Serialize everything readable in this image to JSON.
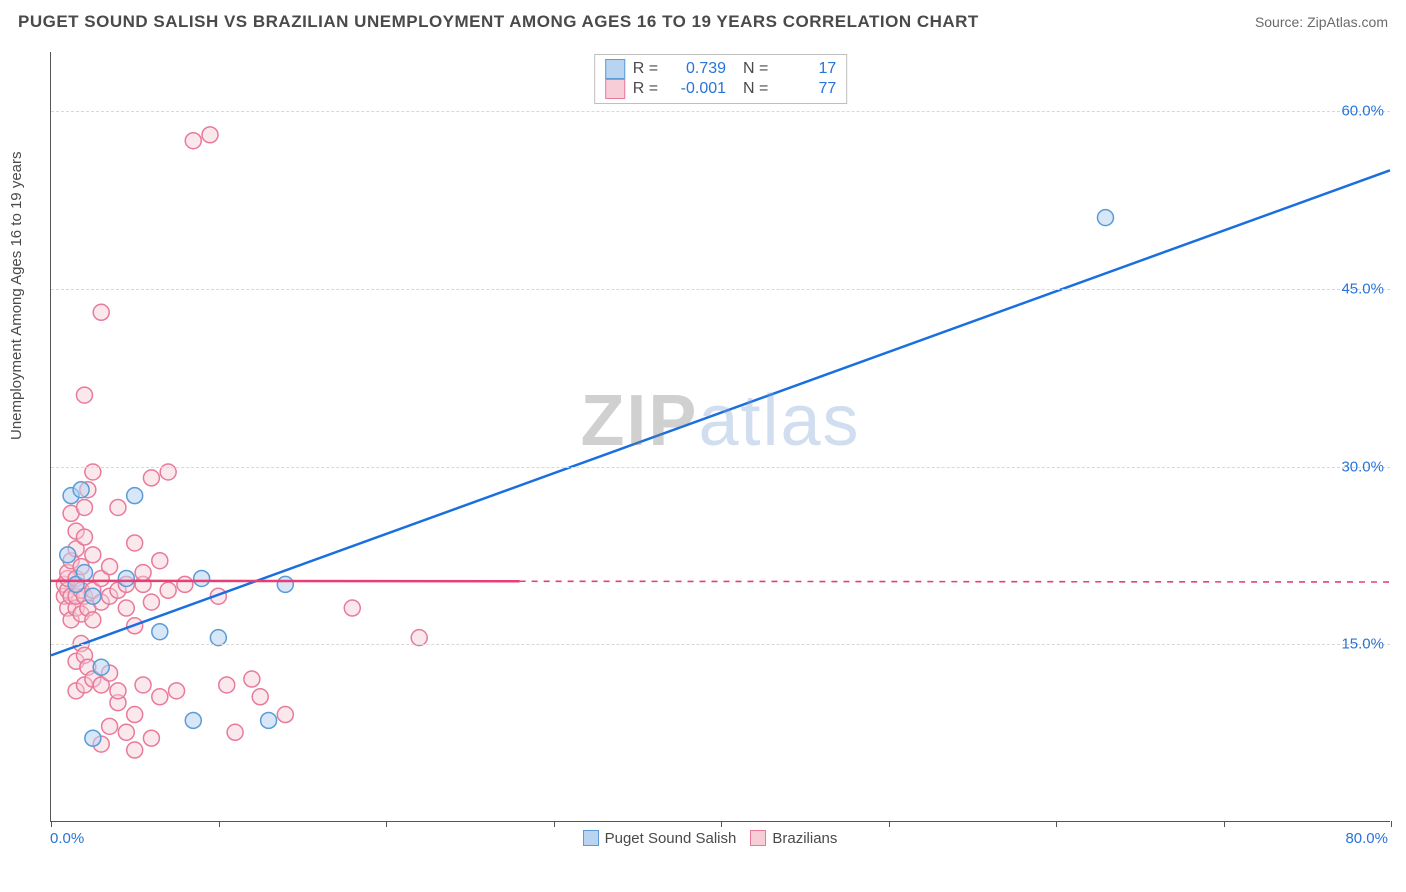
{
  "title": "PUGET SOUND SALISH VS BRAZILIAN UNEMPLOYMENT AMONG AGES 16 TO 19 YEARS CORRELATION CHART",
  "source": "Source: ZipAtlas.com",
  "watermark_zip": "ZIP",
  "watermark_atlas": "atlas",
  "y_axis_label": "Unemployment Among Ages 16 to 19 years",
  "chart": {
    "type": "scatter",
    "background_color": "#ffffff",
    "grid_color": "#d8d8d8",
    "axis_color": "#555555",
    "tick_label_color": "#2874d8",
    "title_fontsize": 17,
    "label_fontsize": 15,
    "xlim": [
      0,
      80
    ],
    "ylim": [
      0,
      65
    ],
    "x_origin_label": "0.0%",
    "x_max_label": "80.0%",
    "x_tick_positions": [
      0,
      10,
      20,
      30,
      40,
      50,
      60,
      70,
      80
    ],
    "y_ticks": [
      {
        "v": 15,
        "label": "15.0%"
      },
      {
        "v": 30,
        "label": "30.0%"
      },
      {
        "v": 45,
        "label": "45.0%"
      },
      {
        "v": 60,
        "label": "60.0%"
      }
    ],
    "marker_radius": 8,
    "marker_stroke_width": 1.5,
    "line_width": 2.5,
    "series": [
      {
        "id": "blue",
        "name": "Puget Sound Salish",
        "fill": "#b8d4f0",
        "stroke": "#5a9bd8",
        "fill_opacity": 0.55,
        "R_label": "R =",
        "R": "0.739",
        "N_label": "N =",
        "N": "17",
        "trend": {
          "x1": 0,
          "y1": 14,
          "x2": 80,
          "y2": 55,
          "solid_until_x": 80,
          "color": "#1a6fe0"
        },
        "points": [
          [
            1.0,
            22.5
          ],
          [
            1.2,
            27.5
          ],
          [
            1.5,
            20.0
          ],
          [
            1.8,
            28.0
          ],
          [
            2.0,
            21.0
          ],
          [
            2.5,
            19.0
          ],
          [
            2.5,
            7.0
          ],
          [
            3.0,
            13.0
          ],
          [
            4.5,
            20.5
          ],
          [
            5.0,
            27.5
          ],
          [
            6.5,
            16.0
          ],
          [
            8.5,
            8.5
          ],
          [
            9.0,
            20.5
          ],
          [
            10.0,
            15.5
          ],
          [
            13.0,
            8.5
          ],
          [
            14.0,
            20.0
          ],
          [
            63.0,
            51.0
          ]
        ]
      },
      {
        "id": "pink",
        "name": "Brazilians",
        "fill": "#f7cdd7",
        "stroke": "#e87a9a",
        "fill_opacity": 0.45,
        "R_label": "R =",
        "R": "-0.001",
        "N_label": "N =",
        "N": "77",
        "trend": {
          "x1": 0,
          "y1": 20.3,
          "x2": 80,
          "y2": 20.2,
          "solid_until_x": 28,
          "color": "#e83e75"
        },
        "points": [
          [
            0.8,
            19.0
          ],
          [
            0.8,
            20.0
          ],
          [
            1.0,
            18.0
          ],
          [
            1.0,
            19.5
          ],
          [
            1.0,
            20.5
          ],
          [
            1.0,
            21.0
          ],
          [
            1.2,
            17.0
          ],
          [
            1.2,
            19.0
          ],
          [
            1.2,
            22.0
          ],
          [
            1.2,
            26.0
          ],
          [
            1.5,
            11.0
          ],
          [
            1.5,
            13.5
          ],
          [
            1.5,
            18.0
          ],
          [
            1.5,
            19.0
          ],
          [
            1.5,
            20.5
          ],
          [
            1.5,
            23.0
          ],
          [
            1.5,
            24.5
          ],
          [
            1.8,
            15.0
          ],
          [
            1.8,
            17.5
          ],
          [
            1.8,
            19.5
          ],
          [
            1.8,
            21.5
          ],
          [
            2.0,
            11.5
          ],
          [
            2.0,
            14.0
          ],
          [
            2.0,
            19.0
          ],
          [
            2.0,
            24.0
          ],
          [
            2.0,
            26.5
          ],
          [
            2.0,
            36.0
          ],
          [
            2.2,
            13.0
          ],
          [
            2.2,
            18.0
          ],
          [
            2.2,
            28.0
          ],
          [
            2.5,
            12.0
          ],
          [
            2.5,
            17.0
          ],
          [
            2.5,
            19.5
          ],
          [
            2.5,
            22.5
          ],
          [
            2.5,
            29.5
          ],
          [
            3.0,
            6.5
          ],
          [
            3.0,
            11.5
          ],
          [
            3.0,
            18.5
          ],
          [
            3.0,
            20.5
          ],
          [
            3.0,
            43.0
          ],
          [
            3.5,
            8.0
          ],
          [
            3.5,
            12.5
          ],
          [
            3.5,
            19.0
          ],
          [
            3.5,
            21.5
          ],
          [
            4.0,
            10.0
          ],
          [
            4.0,
            11.0
          ],
          [
            4.0,
            19.5
          ],
          [
            4.0,
            26.5
          ],
          [
            4.5,
            7.5
          ],
          [
            4.5,
            18.0
          ],
          [
            4.5,
            20.0
          ],
          [
            5.0,
            9.0
          ],
          [
            5.0,
            16.5
          ],
          [
            5.0,
            23.5
          ],
          [
            5.5,
            11.5
          ],
          [
            5.5,
            20.0
          ],
          [
            5.5,
            21.0
          ],
          [
            6.0,
            7.0
          ],
          [
            6.0,
            18.5
          ],
          [
            6.0,
            29.0
          ],
          [
            6.5,
            10.5
          ],
          [
            6.5,
            22.0
          ],
          [
            7.0,
            19.5
          ],
          [
            7.0,
            29.5
          ],
          [
            7.5,
            11.0
          ],
          [
            8.0,
            20.0
          ],
          [
            8.5,
            57.5
          ],
          [
            9.5,
            58.0
          ],
          [
            10.0,
            19.0
          ],
          [
            10.5,
            11.5
          ],
          [
            11.0,
            7.5
          ],
          [
            12.0,
            12.0
          ],
          [
            12.5,
            10.5
          ],
          [
            14.0,
            9.0
          ],
          [
            18.0,
            18.0
          ],
          [
            22.0,
            15.5
          ],
          [
            5.0,
            6.0
          ]
        ]
      }
    ],
    "bottom_legend": [
      {
        "swatch_fill": "#b8d4f0",
        "swatch_stroke": "#5a9bd8",
        "label": "Puget Sound Salish"
      },
      {
        "swatch_fill": "#f7cdd7",
        "swatch_stroke": "#e87a9a",
        "label": "Brazilians"
      }
    ]
  }
}
